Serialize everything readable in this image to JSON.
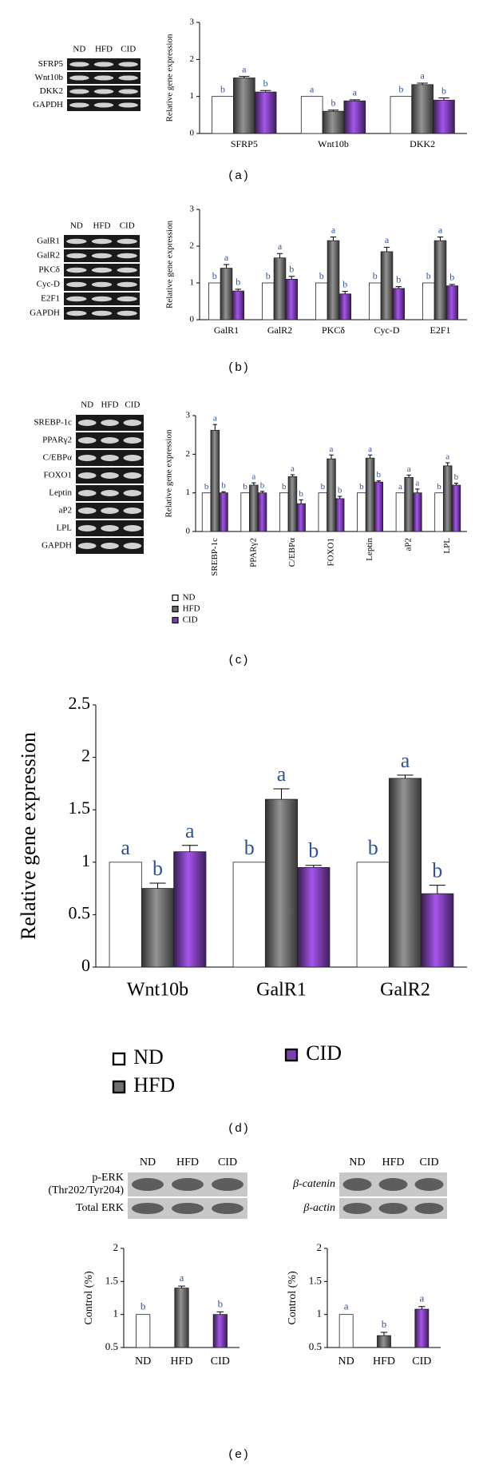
{
  "chart_data": [
    {
      "type": "bar",
      "y_label": "Relative gene expression",
      "categories": [
        "SFRP5",
        "Wnt10b",
        "DKK2"
      ],
      "series": [
        {
          "name": "ND",
          "color": "#ffffff",
          "values": [
            1,
            1,
            1
          ],
          "letters": [
            "b",
            "a",
            "b"
          ]
        },
        {
          "name": "HFD",
          "color": "#6e6e6e",
          "values": [
            1.5,
            0.6,
            1.32
          ],
          "errors": [
            0.04,
            0.03,
            0.04
          ],
          "letters": [
            "a",
            "b",
            "a"
          ]
        },
        {
          "name": "CID",
          "color": "#7b3fb0",
          "values": [
            1.12,
            0.88,
            0.9
          ],
          "errors": [
            0.04,
            0.03,
            0.06
          ],
          "letters": [
            "b",
            "a",
            "b"
          ]
        }
      ],
      "ylim": [
        0,
        3
      ],
      "yticks": [
        0,
        1,
        2,
        3
      ],
      "legend": false
    },
    {
      "type": "bar",
      "y_label": "Relative gene expression",
      "categories": [
        "GalR1",
        "GalR2",
        "PKCδ",
        "Cyc-D",
        "E2F1"
      ],
      "series": [
        {
          "name": "ND",
          "color": "#ffffff",
          "values": [
            1,
            1,
            1,
            1,
            1
          ],
          "letters": [
            "b",
            "b",
            "b",
            "b",
            "b"
          ]
        },
        {
          "name": "HFD",
          "color": "#6e6e6e",
          "values": [
            1.4,
            1.68,
            2.15,
            1.85,
            2.15
          ],
          "errors": [
            0.1,
            0.12,
            0.1,
            0.12,
            0.1
          ],
          "letters": [
            "a",
            "a",
            "a",
            "a",
            "a"
          ]
        },
        {
          "name": "CID",
          "color": "#7b3fb0",
          "values": [
            0.78,
            1.1,
            0.7,
            0.85,
            0.92
          ],
          "errors": [
            0.05,
            0.08,
            0.07,
            0.05,
            0.04
          ],
          "letters": [
            "b",
            "b",
            "b",
            "b",
            "b"
          ]
        }
      ],
      "ylim": [
        0,
        3
      ],
      "yticks": [
        0,
        1,
        2,
        3
      ],
      "legend": false
    },
    {
      "type": "bar",
      "y_label": "Relative gene expression",
      "categories": [
        "SREBP-1c",
        "PPARγ2",
        "C/EBPα",
        "FOXO1",
        "Leptin",
        "aP2",
        "LPL"
      ],
      "series": [
        {
          "name": "ND",
          "color": "#ffffff",
          "values": [
            1,
            1,
            1,
            1,
            1,
            1,
            1
          ],
          "letters": [
            "b",
            "b",
            "b",
            "b",
            "b",
            "a",
            "b"
          ]
        },
        {
          "name": "HFD",
          "color": "#6e6e6e",
          "values": [
            2.62,
            1.2,
            1.42,
            1.88,
            1.9,
            1.4,
            1.7
          ],
          "errors": [
            0.15,
            0.06,
            0.05,
            0.1,
            0.08,
            0.06,
            0.08
          ],
          "letters": [
            "a",
            "a",
            "a",
            "a",
            "a",
            "a",
            "a"
          ]
        },
        {
          "name": "CID",
          "color": "#7b3fb0",
          "values": [
            1.0,
            1.0,
            0.72,
            0.85,
            1.28,
            1.0,
            1.2
          ],
          "errors": [
            0.03,
            0.04,
            0.1,
            0.06,
            0.03,
            0.1,
            0.05
          ],
          "letters": [
            "b",
            "b",
            "b",
            "b",
            "b",
            "a",
            "b"
          ]
        }
      ],
      "ylim": [
        0,
        3
      ],
      "yticks": [
        0,
        1,
        2,
        3
      ],
      "legend": true
    },
    {
      "type": "bar",
      "y_label": "Relative gene expression",
      "categories": [
        "Wnt10b",
        "GalR1",
        "GalR2"
      ],
      "series": [
        {
          "name": "ND",
          "color": "#ffffff",
          "values": [
            1,
            1,
            1
          ],
          "letters": [
            "a",
            "b",
            "b"
          ]
        },
        {
          "name": "HFD",
          "color": "#6e6e6e",
          "values": [
            0.75,
            1.6,
            1.8
          ],
          "errors": [
            0.05,
            0.1,
            0.03
          ],
          "letters": [
            "b",
            "a",
            "a"
          ]
        },
        {
          "name": "CID",
          "color": "#7b3fb0",
          "values": [
            1.1,
            0.95,
            0.7
          ],
          "errors": [
            0.06,
            0.02,
            0.08
          ],
          "letters": [
            "a",
            "b",
            "b"
          ]
        }
      ],
      "ylim": [
        0,
        2.5
      ],
      "yticks": [
        0,
        0.5,
        1,
        1.5,
        2,
        2.5
      ],
      "legend": true
    },
    {
      "type": "bar",
      "y_label": "Control (%)",
      "categories": [
        "ND",
        "HFD",
        "CID"
      ],
      "values": [
        1,
        1.4,
        1.0
      ],
      "errors": [
        null,
        0.03,
        0.04
      ],
      "letters": [
        "b",
        "a",
        "b"
      ],
      "colors": [
        "#ffffff",
        "#6e6e6e",
        "#7b3fb0"
      ],
      "ylim": [
        0.5,
        2
      ],
      "yticks": [
        0.5,
        1,
        1.5,
        2
      ],
      "legend": false
    },
    {
      "type": "bar",
      "y_label": "Control (%)",
      "categories": [
        "ND",
        "HFD",
        "CID"
      ],
      "values": [
        1,
        0.68,
        1.08
      ],
      "errors": [
        null,
        0.05,
        0.04
      ],
      "letters": [
        "a",
        "b",
        "a"
      ],
      "colors": [
        "#ffffff",
        "#6e6e6e",
        "#7b3fb0"
      ],
      "ylim": [
        0.5,
        2
      ],
      "yticks": [
        0.5,
        1,
        1.5,
        2
      ],
      "legend": false
    }
  ],
  "blots": [
    {
      "columns": [
        "ND",
        "HFD",
        "CID"
      ],
      "rows": [
        "SFRP5",
        "Wnt10b",
        "DKK2",
        "GAPDH"
      ]
    },
    {
      "columns": [
        "ND",
        "HFD",
        "CID"
      ],
      "rows": [
        "GalR1",
        "GalR2",
        "PKCδ",
        "Cyc-D",
        "E2F1",
        "GAPDH"
      ]
    },
    {
      "columns": [
        "ND",
        "HFD",
        "CID"
      ],
      "rows": [
        "SREBP-1c",
        "PPARγ2",
        "C/EBPα",
        "FOXO1",
        "Leptin",
        "aP2",
        "LPL",
        "GAPDH"
      ]
    },
    {
      "columns": [
        "ND",
        "HFD",
        "CID"
      ],
      "rows": [
        [
          "p-ERK",
          "(Thr202/Tyr204)"
        ],
        "Total ERK"
      ]
    },
    {
      "columns": [
        "ND",
        "HFD",
        "CID"
      ],
      "rows": [
        "β-catenin",
        "β-actin"
      ]
    }
  ],
  "captions": [
    "(a)",
    "(b)",
    "(c)",
    "(d)",
    "(e)"
  ]
}
